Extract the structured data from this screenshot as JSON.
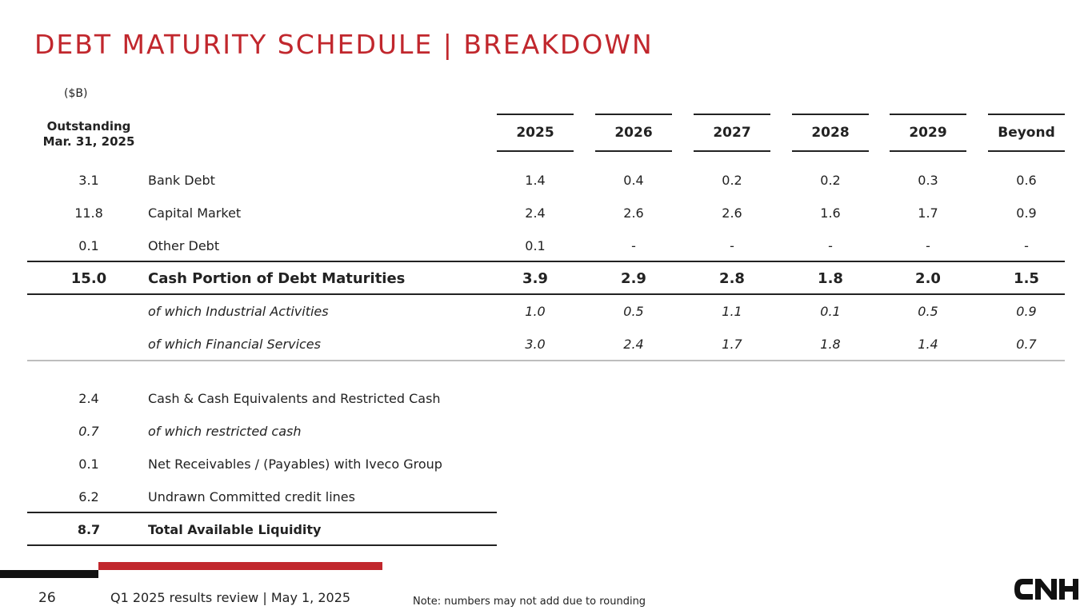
{
  "title": "DEBT MATURITY SCHEDULE | BREAKDOWN",
  "unit": "($B)",
  "outstanding_header": [
    "Outstanding",
    "Mar. 31, 2025"
  ],
  "years": [
    "2025",
    "2026",
    "2027",
    "2028",
    "2029",
    "Beyond"
  ],
  "maturity_rows": [
    {
      "outstanding": "3.1",
      "label": "Bank Debt",
      "values": [
        "1.4",
        "0.4",
        "0.2",
        "0.2",
        "0.3",
        "0.6"
      ]
    },
    {
      "outstanding": "11.8",
      "label": "Capital Market",
      "values": [
        "2.4",
        "2.6",
        "2.6",
        "1.6",
        "1.7",
        "0.9"
      ]
    },
    {
      "outstanding": "0.1",
      "label": "Other Debt",
      "values": [
        "0.1",
        "-",
        "-",
        "-",
        "-",
        "-"
      ]
    },
    {
      "outstanding": "15.0",
      "label": "Cash Portion of Debt Maturities",
      "values": [
        "3.9",
        "2.9",
        "2.8",
        "1.8",
        "2.0",
        "1.5"
      ]
    },
    {
      "outstanding": "",
      "label": "of which Industrial Activities",
      "values": [
        "1.0",
        "0.5",
        "1.1",
        "0.1",
        "0.5",
        "0.9"
      ]
    },
    {
      "outstanding": "",
      "label": "of which Financial Services",
      "values": [
        "3.0",
        "2.4",
        "1.7",
        "1.8",
        "1.4",
        "0.7"
      ]
    }
  ],
  "liquidity_rows": [
    {
      "outstanding": "2.4",
      "label": "Cash & Cash Equivalents and Restricted Cash"
    },
    {
      "outstanding": "0.7",
      "label": "of which restricted cash"
    },
    {
      "outstanding": "0.1",
      "label": "Net Receivables / (Payables) with Iveco Group"
    },
    {
      "outstanding": "6.2",
      "label": "Undrawn Committed credit lines"
    },
    {
      "outstanding": "8.7",
      "label": "Total Available Liquidity"
    }
  ],
  "footer": {
    "page_number": "26",
    "text": "Q1 2025 results review | May 1, 2025",
    "note": "Note: numbers may not add due to rounding",
    "logo_text": "CNH"
  },
  "colors": {
    "accent": "#c1272d",
    "text": "#222222",
    "rule": "#222222",
    "light_rule": "#bdbdbd"
  }
}
